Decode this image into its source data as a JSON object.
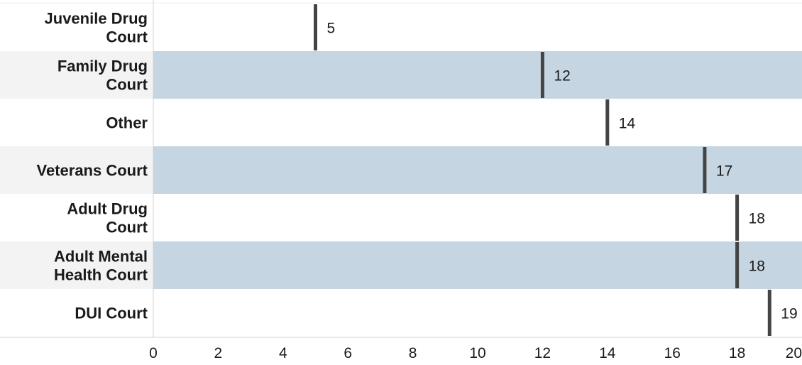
{
  "chart_data": {
    "type": "bar",
    "orientation": "horizontal",
    "categories": [
      [
        "Juvenile Drug",
        "Court"
      ],
      [
        "Family Drug",
        "Court"
      ],
      [
        "Other"
      ],
      [
        "Veterans Court"
      ],
      [
        "Adult Drug",
        "Court"
      ],
      [
        "Adult Mental",
        "Health Court"
      ],
      [
        "DUI Court"
      ]
    ],
    "values": [
      5,
      12,
      14,
      17,
      18,
      18,
      19
    ],
    "data_labels": [
      "5",
      "12",
      "14",
      "17",
      "18",
      "18",
      "19"
    ],
    "xlim": [
      0,
      20
    ],
    "x_ticks": [
      0,
      2,
      4,
      6,
      8,
      10,
      12,
      14,
      16,
      18,
      20
    ],
    "tick_labels": [
      "0",
      "2",
      "4",
      "6",
      "8",
      "10",
      "12",
      "14",
      "16",
      "18",
      "20"
    ],
    "title": "",
    "xlabel": "",
    "ylabel": "",
    "grid": false,
    "mark": "tick line at value",
    "colors": {
      "band": "#c5d6e2",
      "label_band": "#f3f3f3",
      "marker": "#444444",
      "axis": "#d0d0d0",
      "text": "#1a1a1a"
    }
  }
}
